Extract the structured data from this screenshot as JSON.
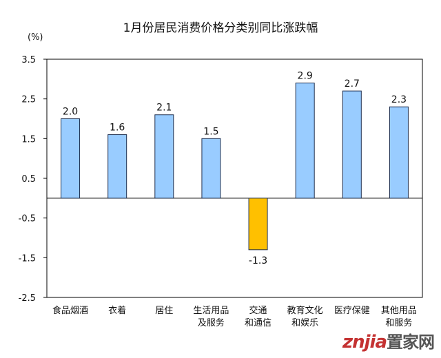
{
  "chart_data": {
    "type": "bar",
    "title": "1月份居民消费价格分类别同比涨跌幅",
    "unit": "(%)",
    "categories": [
      [
        "食品烟酒"
      ],
      [
        "衣着"
      ],
      [
        "居住"
      ],
      [
        "生活用品",
        "及服务"
      ],
      [
        "交通",
        "和通信"
      ],
      [
        "教育文化",
        "和娱乐"
      ],
      [
        "医疗保健"
      ],
      [
        "其他用品",
        "和服务"
      ]
    ],
    "values": [
      2.0,
      1.6,
      2.1,
      1.5,
      -1.3,
      2.9,
      2.7,
      2.3
    ],
    "value_labels": [
      "2.0",
      "1.6",
      "2.1",
      "1.5",
      "-1.3",
      "2.9",
      "2.7",
      "2.3"
    ],
    "ylim": [
      -2.5,
      3.5
    ],
    "yticks": [
      3.5,
      2.5,
      1.5,
      0.5,
      -0.5,
      -1.5,
      -2.5
    ],
    "ytick_labels": [
      "3.5",
      "2.5",
      "1.5",
      "0.5",
      "-0.5",
      "-1.5",
      "-2.5"
    ],
    "grid": false,
    "colors": {
      "positive": "#99ccff",
      "negative": "#ffc000",
      "bar_edge": "#1f2f4f",
      "axis": "#000000"
    }
  },
  "watermark": {
    "latin": "znjia",
    "chinese": "置家网"
  }
}
